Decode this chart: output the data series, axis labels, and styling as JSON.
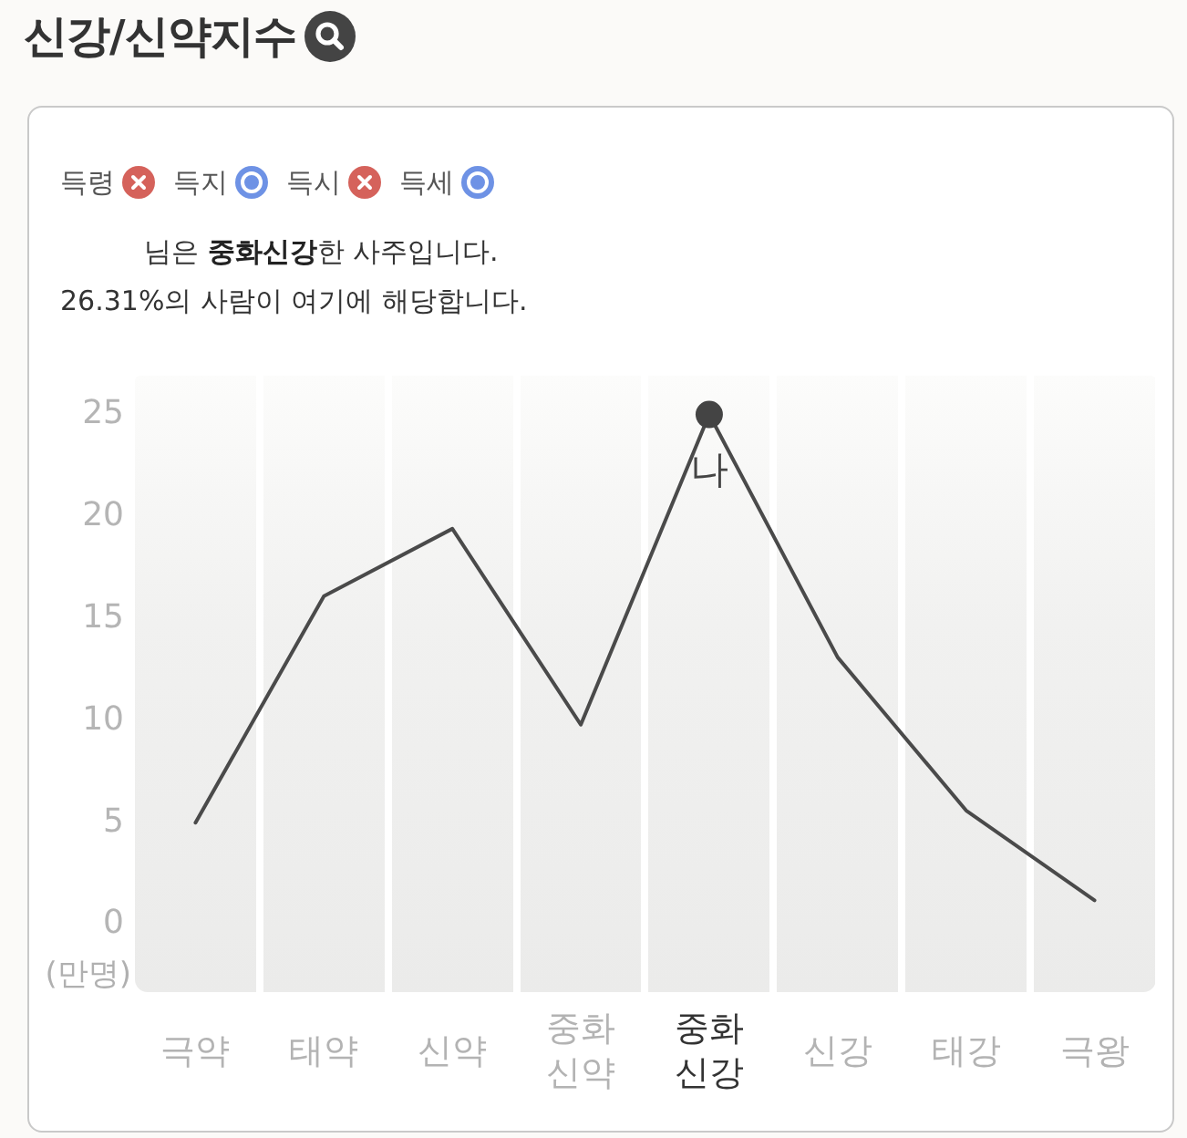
{
  "chart_data": {
    "type": "line",
    "title": "신강/신약지수",
    "ylabel": "(만명)",
    "categories": [
      "극약",
      "태약",
      "신약",
      "중화 신약",
      "중화 신강",
      "신강",
      "태강",
      "극왕"
    ],
    "series": [
      {
        "type": "line",
        "color": "#4a4a4a",
        "marker": "none",
        "line_style": "solid",
        "values": [
          5.0,
          16.1,
          19.4,
          9.8,
          25,
          13.1,
          5.6,
          1.2
        ]
      },
      {
        "type": "scatter",
        "color": "#444444",
        "marker": "circle",
        "values": [
          null,
          null,
          null,
          null,
          25,
          null,
          null,
          null
        ]
      }
    ],
    "ylim": [
      -3.3,
      26.9
    ],
    "yticks": [
      0,
      5,
      10,
      15,
      20,
      25
    ],
    "grid": false,
    "legend": false,
    "annotations": [
      "득령",
      "득지",
      "득시",
      "득세",
      "님은",
      "중화신강",
      "한 사주입니다.",
      "26.31%의 사람이 여기에 해당합니다.",
      {
        "text": "나",
        "x": "중화 신강",
        "y": 25
      }
    ]
  }
}
